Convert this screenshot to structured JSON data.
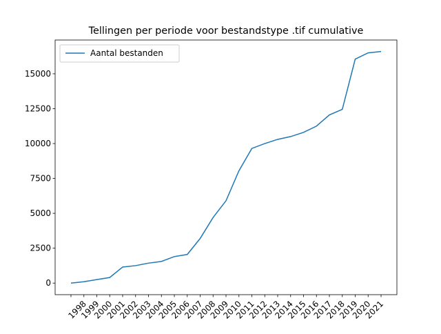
{
  "chart_data": {
    "type": "line",
    "title": "Tellingen per periode voor bestandstype .tif cumulative",
    "categories": [
      null,
      "1998",
      "1999",
      "2000",
      "2001",
      "2002",
      "2003",
      "2004",
      "2005",
      "2006",
      "2007",
      "2008",
      "2009",
      "2010",
      "2011",
      "2012",
      "2013",
      "2014",
      "2015",
      "2016",
      "2017",
      "2018",
      "2019",
      "2020",
      "2021"
    ],
    "series": [
      {
        "name": "Aantal bestanden",
        "color": "#1f77b4",
        "values": [
          0,
          100,
          250,
          400,
          1150,
          1250,
          1430,
          1550,
          1900,
          2050,
          3200,
          4700,
          5900,
          8050,
          9650,
          10000,
          10300,
          10500,
          10800,
          11250,
          12050,
          12450,
          16050,
          16500,
          16600
        ]
      }
    ],
    "ylim": [
      -830,
      17420
    ],
    "yticks": [
      0,
      2500,
      5000,
      7500,
      10000,
      12500,
      15000
    ],
    "legend": "upper left",
    "grid": false
  }
}
